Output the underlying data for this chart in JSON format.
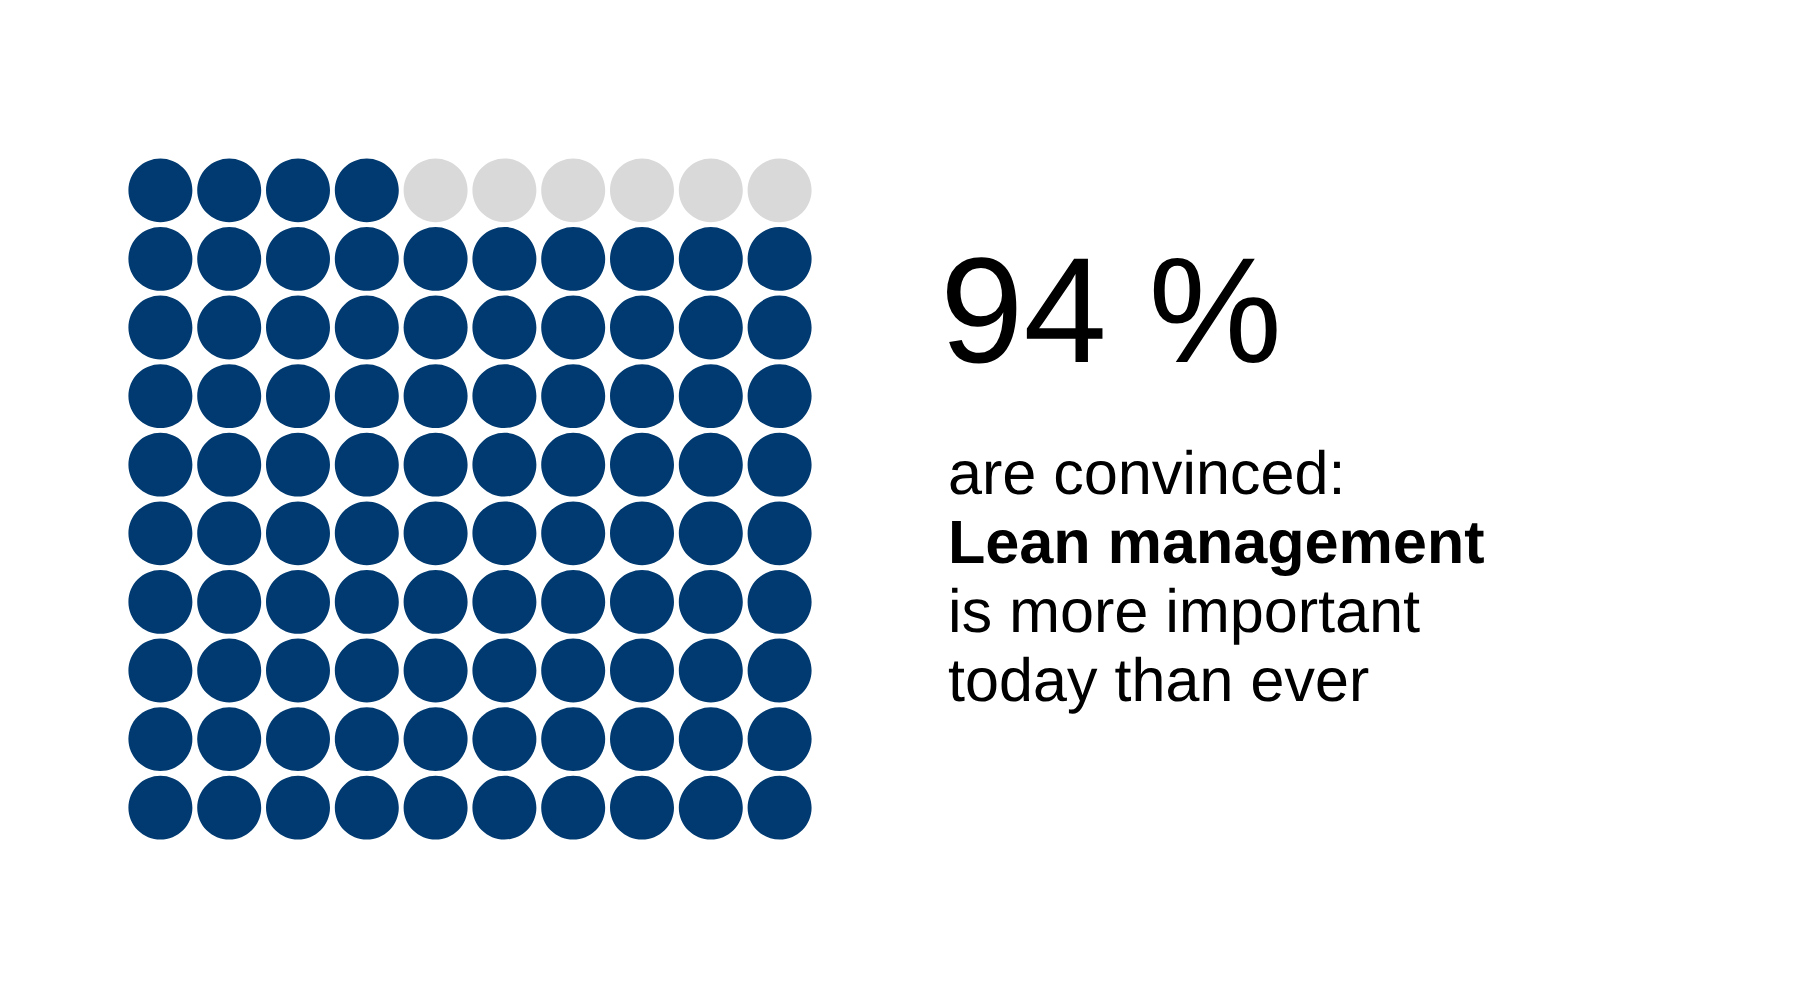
{
  "chart_data": {
    "type": "other",
    "values": [
      94
    ],
    "colors": [
      "#003a70"
    ],
    "value_labels": [
      "94 %"
    ],
    "annotations": [
      "are convinced:",
      "Lean management",
      "is more important",
      "today than ever"
    ]
  }
}
